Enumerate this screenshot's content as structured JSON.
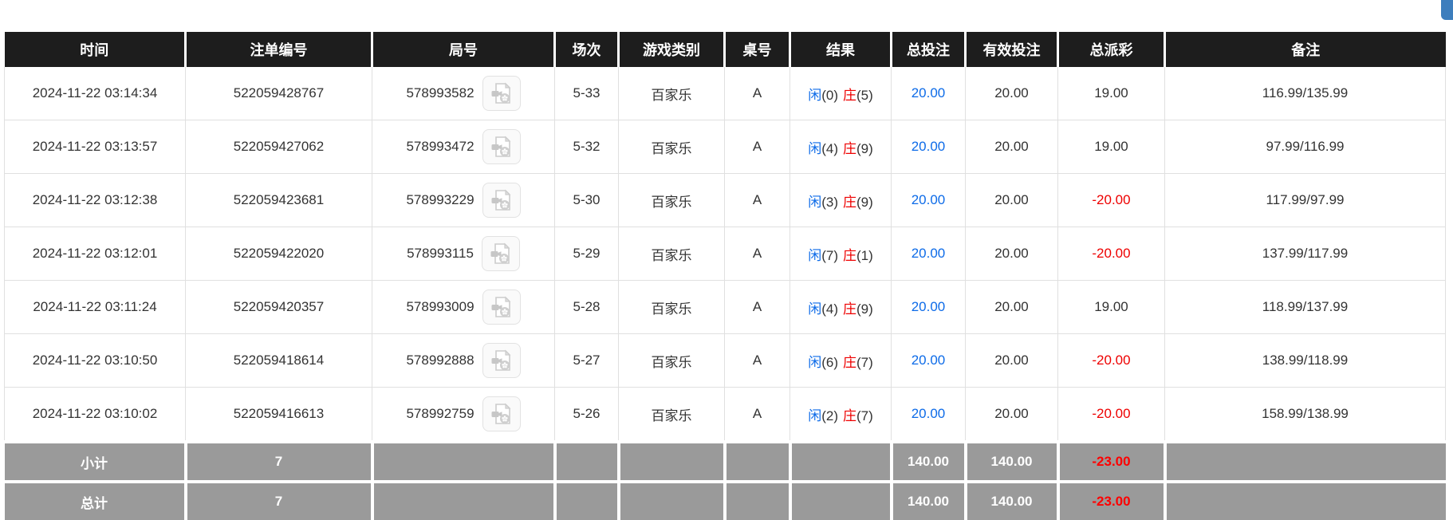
{
  "top_right_button": {
    "color": "#3d7ebd"
  },
  "icons": {
    "round_video": "video-replay-icon"
  },
  "colors": {
    "header_bg": "#1d1d1d",
    "summary_bg": "#9a9a9a",
    "player_blue": "#0d6be8",
    "banker_red": "#ee0000",
    "negative_red": "#ff0000",
    "total_bet_blue": "#0d6be8"
  },
  "table": {
    "columns": [
      {
        "key": "time",
        "label": "时间"
      },
      {
        "key": "bet_no",
        "label": "注单编号"
      },
      {
        "key": "round_no",
        "label": "局号"
      },
      {
        "key": "session",
        "label": "场次"
      },
      {
        "key": "game_type",
        "label": "游戏类别"
      },
      {
        "key": "table_no",
        "label": "桌号"
      },
      {
        "key": "result",
        "label": "结果"
      },
      {
        "key": "total_bet",
        "label": "总投注"
      },
      {
        "key": "valid_bet",
        "label": "有效投注"
      },
      {
        "key": "total_payout",
        "label": "总派彩"
      },
      {
        "key": "remark",
        "label": "备注"
      }
    ],
    "rows": [
      {
        "time": "2024-11-22 03:14:34",
        "bet_no": "522059428767",
        "round_no": "578993582",
        "session": "5-33",
        "game_type": "百家乐",
        "table_no": "A",
        "result": {
          "player_label": "闲",
          "player_value": "(0)",
          "banker_label": "庄",
          "banker_value": "(5)"
        },
        "total_bet": "20.00",
        "valid_bet": "20.00",
        "total_payout": "19.00",
        "remark": "116.99/135.99"
      },
      {
        "time": "2024-11-22 03:13:57",
        "bet_no": "522059427062",
        "round_no": "578993472",
        "session": "5-32",
        "game_type": "百家乐",
        "table_no": "A",
        "result": {
          "player_label": "闲",
          "player_value": "(4)",
          "banker_label": "庄",
          "banker_value": "(9)"
        },
        "total_bet": "20.00",
        "valid_bet": "20.00",
        "total_payout": "19.00",
        "remark": "97.99/116.99"
      },
      {
        "time": "2024-11-22 03:12:38",
        "bet_no": "522059423681",
        "round_no": "578993229",
        "session": "5-30",
        "game_type": "百家乐",
        "table_no": "A",
        "result": {
          "player_label": "闲",
          "player_value": "(3)",
          "banker_label": "庄",
          "banker_value": "(9)"
        },
        "total_bet": "20.00",
        "valid_bet": "20.00",
        "total_payout": "-20.00",
        "remark": "117.99/97.99"
      },
      {
        "time": "2024-11-22 03:12:01",
        "bet_no": "522059422020",
        "round_no": "578993115",
        "session": "5-29",
        "game_type": "百家乐",
        "table_no": "A",
        "result": {
          "player_label": "闲",
          "player_value": "(7)",
          "banker_label": "庄",
          "banker_value": "(1)"
        },
        "total_bet": "20.00",
        "valid_bet": "20.00",
        "total_payout": "-20.00",
        "remark": "137.99/117.99"
      },
      {
        "time": "2024-11-22 03:11:24",
        "bet_no": "522059420357",
        "round_no": "578993009",
        "session": "5-28",
        "game_type": "百家乐",
        "table_no": "A",
        "result": {
          "player_label": "闲",
          "player_value": "(4)",
          "banker_label": "庄",
          "banker_value": "(9)"
        },
        "total_bet": "20.00",
        "valid_bet": "20.00",
        "total_payout": "19.00",
        "remark": "118.99/137.99"
      },
      {
        "time": "2024-11-22 03:10:50",
        "bet_no": "522059418614",
        "round_no": "578992888",
        "session": "5-27",
        "game_type": "百家乐",
        "table_no": "A",
        "result": {
          "player_label": "闲",
          "player_value": "(6)",
          "banker_label": "庄",
          "banker_value": "(7)"
        },
        "total_bet": "20.00",
        "valid_bet": "20.00",
        "total_payout": "-20.00",
        "remark": "138.99/118.99"
      },
      {
        "time": "2024-11-22 03:10:02",
        "bet_no": "522059416613",
        "round_no": "578992759",
        "session": "5-26",
        "game_type": "百家乐",
        "table_no": "A",
        "result": {
          "player_label": "闲",
          "player_value": "(2)",
          "banker_label": "庄",
          "banker_value": "(7)"
        },
        "total_bet": "20.00",
        "valid_bet": "20.00",
        "total_payout": "-20.00",
        "remark": "158.99/138.99"
      }
    ],
    "summary_rows": [
      {
        "label": "小计",
        "count": "7",
        "total_bet": "140.00",
        "valid_bet": "140.00",
        "total_payout": "-23.00"
      },
      {
        "label": "总计",
        "count": "7",
        "total_bet": "140.00",
        "valid_bet": "140.00",
        "total_payout": "-23.00"
      }
    ]
  }
}
